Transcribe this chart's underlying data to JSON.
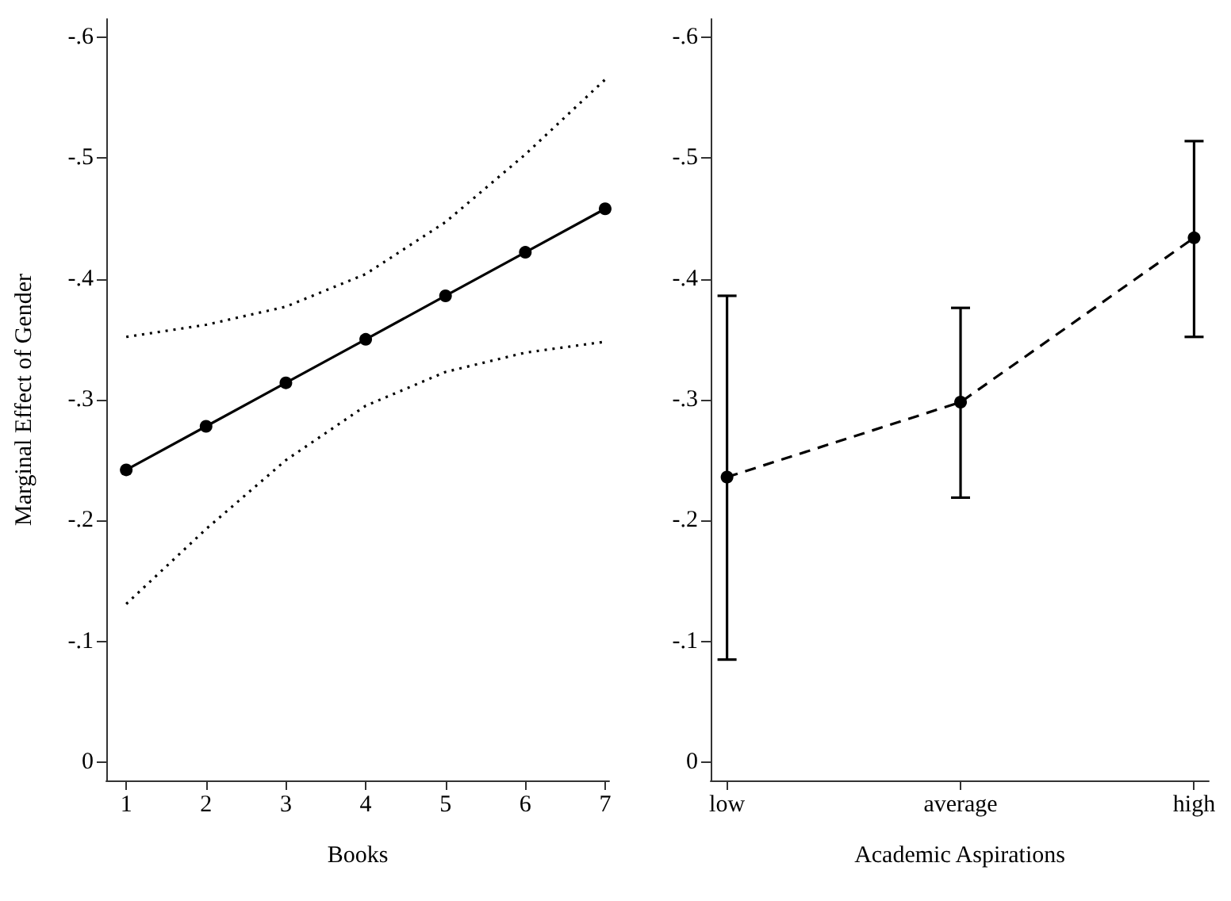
{
  "chart_data": [
    {
      "type": "line",
      "xlabel": "Books",
      "ylabel": "Marginal Effect of Gender",
      "x": [
        1,
        2,
        3,
        4,
        5,
        6,
        7
      ],
      "series": [
        {
          "color": "#000000",
          "values": [
            -0.242,
            -0.278,
            -0.314,
            -0.35,
            -0.386,
            -0.422,
            -0.458
          ]
        },
        {
          "color": "#000000",
          "values": [
            -0.352,
            -0.362,
            -0.377,
            -0.404,
            -0.447,
            -0.503,
            -0.565
          ],
          "line_style": "dotted",
          "marker": "none"
        },
        {
          "color": "#000000",
          "values": [
            -0.131,
            -0.193,
            -0.25,
            -0.295,
            -0.323,
            -0.339,
            -0.348
          ],
          "line_style": "dotted",
          "marker": "none"
        }
      ],
      "xlim": [
        0.75,
        7.05
      ],
      "xticks": [
        1,
        2,
        3,
        4,
        5,
        6,
        7
      ],
      "ylim": [
        0.015,
        -0.615
      ],
      "yticks": [
        0,
        {
          "value": -0.1,
          "label": "-.1"
        },
        {
          "value": -0.2,
          "label": "-.2"
        },
        {
          "value": -0.3,
          "label": "-.3"
        },
        {
          "value": -0.4,
          "label": "-.4"
        },
        {
          "value": -0.5,
          "label": "-.5"
        },
        {
          "value": -0.6,
          "label": "-.6"
        }
      ],
      "grid": false,
      "marker": "circle",
      "line_style": "solid"
    },
    {
      "type": "line",
      "xlabel": "Academic Aspirations",
      "categories": [
        "low",
        "average",
        "high"
      ],
      "series": [
        {
          "color": "#000000",
          "values": [
            -0.236,
            -0.298,
            -0.434
          ],
          "errors": [
            [
              -0.386,
              -0.085
            ],
            [
              -0.376,
              -0.219
            ],
            [
              -0.514,
              -0.352
            ]
          ]
        }
      ],
      "ylim": [
        0.015,
        -0.615
      ],
      "yticks": [
        0,
        {
          "value": -0.1,
          "label": "-.1"
        },
        {
          "value": -0.2,
          "label": "-.2"
        },
        {
          "value": -0.3,
          "label": "-.3"
        },
        {
          "value": -0.4,
          "label": "-.4"
        },
        {
          "value": -0.5,
          "label": "-.5"
        },
        {
          "value": -0.6,
          "label": "-.6"
        }
      ],
      "grid": false,
      "marker": "circle",
      "line_style": "dashed"
    }
  ]
}
